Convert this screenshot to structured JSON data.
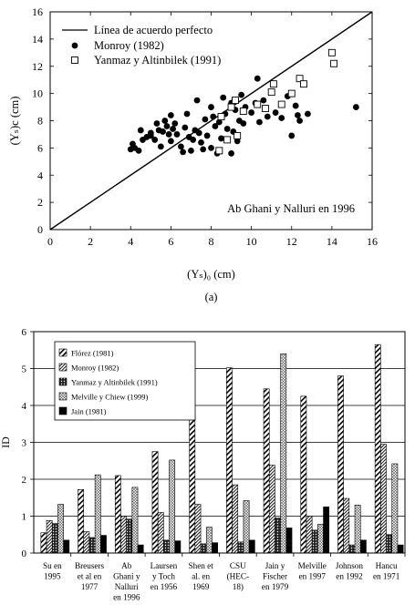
{
  "chart_data": [
    {
      "type": "scatter",
      "xlabel": "(Yₛ)₀ (cm)",
      "ylabel": "(Yₛ)c (cm)",
      "xlim": [
        0,
        16
      ],
      "ylim": [
        0,
        16
      ],
      "xticks": [
        0,
        2,
        4,
        6,
        8,
        10,
        12,
        14,
        16
      ],
      "yticks": [
        0,
        2,
        4,
        6,
        8,
        10,
        12,
        14,
        16
      ],
      "legend_position": "top-left",
      "annotation": "Ab Ghani y Nalluri en 1996",
      "panel_label": "(a)",
      "reference_line": {
        "name": "Línea de acuerdo perfecto",
        "points": [
          [
            0,
            0
          ],
          [
            16,
            16
          ]
        ]
      },
      "series": [
        {
          "name": "Monroy (1982)",
          "marker": "filled-circle",
          "points": [
            [
              4.0,
              5.9
            ],
            [
              4.1,
              6.3
            ],
            [
              4.2,
              6.0
            ],
            [
              4.4,
              5.8
            ],
            [
              4.5,
              7.3
            ],
            [
              4.6,
              6.6
            ],
            [
              4.8,
              6.8
            ],
            [
              5.0,
              7.1
            ],
            [
              5.0,
              6.9
            ],
            [
              5.2,
              6.6
            ],
            [
              5.3,
              7.8
            ],
            [
              5.4,
              7.3
            ],
            [
              5.5,
              6.1
            ],
            [
              5.6,
              7.2
            ],
            [
              5.7,
              8.0
            ],
            [
              5.8,
              7.6
            ],
            [
              5.9,
              7.0
            ],
            [
              6.0,
              8.4
            ],
            [
              6.0,
              6.5
            ],
            [
              6.1,
              7.4
            ],
            [
              6.2,
              7.8
            ],
            [
              6.3,
              7.0
            ],
            [
              6.5,
              6.1
            ],
            [
              6.6,
              5.7
            ],
            [
              6.7,
              7.5
            ],
            [
              6.8,
              8.5
            ],
            [
              6.9,
              6.8
            ],
            [
              7.0,
              5.8
            ],
            [
              7.1,
              6.6
            ],
            [
              7.2,
              7.3
            ],
            [
              7.3,
              9.5
            ],
            [
              7.4,
              7.1
            ],
            [
              7.5,
              6.4
            ],
            [
              7.6,
              5.9
            ],
            [
              7.7,
              8.1
            ],
            [
              7.8,
              6.9
            ],
            [
              8.0,
              6.0
            ],
            [
              8.0,
              9.0
            ],
            [
              8.1,
              8.3
            ],
            [
              8.2,
              7.6
            ],
            [
              8.3,
              5.6
            ],
            [
              8.4,
              7.9
            ],
            [
              8.5,
              6.7
            ],
            [
              8.6,
              9.7
            ],
            [
              8.7,
              8.5
            ],
            [
              8.8,
              7.4
            ],
            [
              9.0,
              9.3
            ],
            [
              9.0,
              5.6
            ],
            [
              9.1,
              7.2
            ],
            [
              9.2,
              8.8
            ],
            [
              9.3,
              6.5
            ],
            [
              9.4,
              8.0
            ],
            [
              9.5,
              9.9
            ],
            [
              9.6,
              7.8
            ],
            [
              9.7,
              9.0
            ],
            [
              10.0,
              8.6
            ],
            [
              10.2,
              9.3
            ],
            [
              10.3,
              11.1
            ],
            [
              10.4,
              7.9
            ],
            [
              10.6,
              9.5
            ],
            [
              10.8,
              8.3
            ],
            [
              11.2,
              8.6
            ],
            [
              11.5,
              8.2
            ],
            [
              11.8,
              9.8
            ],
            [
              12.0,
              6.9
            ],
            [
              12.2,
              9.1
            ],
            [
              12.3,
              8.4
            ],
            [
              12.4,
              8.0
            ],
            [
              12.8,
              8.5
            ],
            [
              15.2,
              9.0
            ]
          ]
        },
        {
          "name": "Yanmaz y Altinbilek (1991)",
          "marker": "open-square",
          "points": [
            [
              8.4,
              5.8
            ],
            [
              8.5,
              8.3
            ],
            [
              8.8,
              6.6
            ],
            [
              9.0,
              9.0
            ],
            [
              9.2,
              9.5
            ],
            [
              9.3,
              6.9
            ],
            [
              9.6,
              8.7
            ],
            [
              10.3,
              9.2
            ],
            [
              10.7,
              8.9
            ],
            [
              11.0,
              10.1
            ],
            [
              11.1,
              10.7
            ],
            [
              11.5,
              9.2
            ],
            [
              12.0,
              10.0
            ],
            [
              12.4,
              11.1
            ],
            [
              12.6,
              10.7
            ],
            [
              14.0,
              13.0
            ],
            [
              14.1,
              12.2
            ]
          ]
        }
      ]
    },
    {
      "type": "bar",
      "ylabel": "ID",
      "ylim": [
        0,
        6
      ],
      "yticks": [
        0,
        1,
        2,
        3,
        4,
        5,
        6
      ],
      "grid": "horizontal",
      "legend_position": "top-left",
      "categories": [
        [
          "Su en",
          "1995"
        ],
        [
          "Breusers",
          "et al en",
          "1977"
        ],
        [
          "Ab",
          "Ghani y",
          "Nalluri",
          "en 1996"
        ],
        [
          "Laursen",
          "y Toch",
          "en 1956"
        ],
        [
          "Shen et",
          "al. en",
          "1969"
        ],
        [
          "CSU",
          "(HEC-",
          "18)"
        ],
        [
          "Jain y",
          "Fischer",
          "en 1979"
        ],
        [
          "Melville",
          "en 1997"
        ],
        [
          "Johnson",
          "en 1992"
        ],
        [
          "Hancu",
          "en 1971"
        ]
      ],
      "series": [
        {
          "name": "Flórez (1981)",
          "pattern": "wide-diagonal",
          "values": [
            0.55,
            1.72,
            2.1,
            2.75,
            3.75,
            5.02,
            4.45,
            4.25,
            4.8,
            5.65
          ]
        },
        {
          "name": "Monroy (1982)",
          "pattern": "fine-diagonal",
          "values": [
            0.88,
            0.58,
            1.0,
            1.1,
            1.32,
            1.85,
            2.38,
            1.0,
            1.48,
            2.95
          ]
        },
        {
          "name": "Yanmaz y Altinbilek (1991)",
          "pattern": "dotted-dark",
          "values": [
            0.8,
            0.42,
            0.92,
            0.35,
            0.25,
            0.3,
            0.95,
            0.62,
            0.22,
            0.5
          ]
        },
        {
          "name": "Melville y Chiew (1999)",
          "pattern": "crosshatch",
          "values": [
            1.32,
            2.12,
            1.78,
            2.52,
            0.7,
            1.42,
            5.4,
            0.78,
            1.3,
            2.42
          ]
        },
        {
          "name": "Jain (1981)",
          "pattern": "solid-black",
          "values": [
            0.35,
            0.48,
            0.22,
            0.33,
            0.28,
            0.35,
            0.68,
            1.25,
            0.35,
            0.22
          ]
        }
      ]
    }
  ]
}
